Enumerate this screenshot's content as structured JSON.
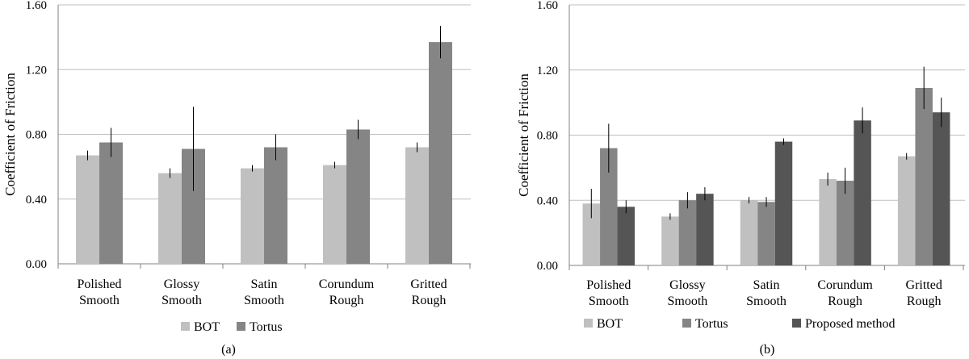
{
  "chart_data": [
    {
      "type": "bar",
      "panel_label": "(a)",
      "ylabel": "Coefficient of Friction",
      "ylim": [
        0,
        1.6
      ],
      "yticks": [
        "0.00",
        "0.40",
        "0.80",
        "1.20",
        "1.60"
      ],
      "grid": true,
      "legend_position": "bottom",
      "categories": [
        [
          "Polished",
          "Smooth"
        ],
        [
          "Glossy",
          "Smooth"
        ],
        [
          "Satin",
          "Smooth"
        ],
        [
          "Corundum",
          "Rough"
        ],
        [
          "Gritted",
          "Rough"
        ]
      ],
      "series": [
        {
          "name": "BOT",
          "color": "#c0c0c0",
          "values": [
            0.67,
            0.56,
            0.59,
            0.61,
            0.72
          ],
          "errors": [
            0.03,
            0.03,
            0.02,
            0.02,
            0.03
          ]
        },
        {
          "name": "Tortus",
          "color": "#858585",
          "values": [
            0.75,
            0.71,
            0.72,
            0.83,
            1.37
          ],
          "errors": [
            0.09,
            0.26,
            0.08,
            0.06,
            0.1
          ]
        }
      ]
    },
    {
      "type": "bar",
      "panel_label": "(b)",
      "ylabel": "Coefficient of  Friction",
      "ylim": [
        0,
        1.6
      ],
      "yticks": [
        "0.00",
        "0.40",
        "0.80",
        "1.20",
        "1.60"
      ],
      "grid": true,
      "legend_position": "bottom",
      "categories": [
        [
          "Polished",
          "Smooth"
        ],
        [
          "Glossy",
          "Smooth"
        ],
        [
          "Satin",
          "Smooth"
        ],
        [
          "Corundum",
          "Rough"
        ],
        [
          "Gritted",
          "Rough"
        ]
      ],
      "series": [
        {
          "name": "BOT",
          "color": "#c0c0c0",
          "values": [
            0.38,
            0.3,
            0.4,
            0.53,
            0.67
          ],
          "errors": [
            0.09,
            0.02,
            0.02,
            0.04,
            0.02
          ]
        },
        {
          "name": "Tortus",
          "color": "#858585",
          "values": [
            0.72,
            0.4,
            0.39,
            0.52,
            1.09
          ],
          "errors": [
            0.15,
            0.05,
            0.03,
            0.08,
            0.13
          ]
        },
        {
          "name": "Proposed method",
          "color": "#555555",
          "values": [
            0.36,
            0.44,
            0.76,
            0.89,
            0.94
          ],
          "errors": [
            0.04,
            0.04,
            0.02,
            0.08,
            0.09
          ]
        }
      ]
    }
  ]
}
